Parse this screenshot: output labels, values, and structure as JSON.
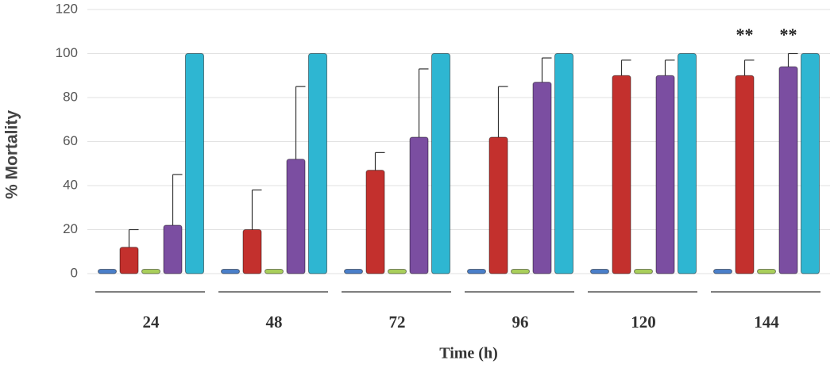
{
  "chart_data": {
    "type": "bar",
    "y_label": "% Mortality",
    "x_label": "Time (h)",
    "categories": [
      "24",
      "48",
      "72",
      "96",
      "120",
      "144"
    ],
    "series": [
      {
        "color": "#4a7fc9",
        "values": [
          2,
          2,
          2,
          2,
          2,
          2
        ]
      },
      {
        "color": "#c3302d",
        "values": [
          12,
          20,
          47,
          62,
          90,
          90
        ],
        "errors": [
          8,
          18,
          8,
          23,
          7,
          7
        ]
      },
      {
        "color": "#a9cf5b",
        "values": [
          2,
          2,
          2,
          2,
          2,
          2
        ]
      },
      {
        "color": "#7b4ea1",
        "values": [
          22,
          52,
          62,
          87,
          90,
          94
        ],
        "errors": [
          23,
          33,
          31,
          11,
          7,
          6
        ]
      },
      {
        "color": "#2eb6d2",
        "values": [
          100,
          100,
          100,
          100,
          100,
          100
        ]
      }
    ],
    "annotations": [
      "**",
      "**"
    ],
    "ylim": [
      0,
      120
    ],
    "yticks": [
      0,
      20,
      40,
      60,
      80,
      100,
      120
    ],
    "grid": true
  }
}
